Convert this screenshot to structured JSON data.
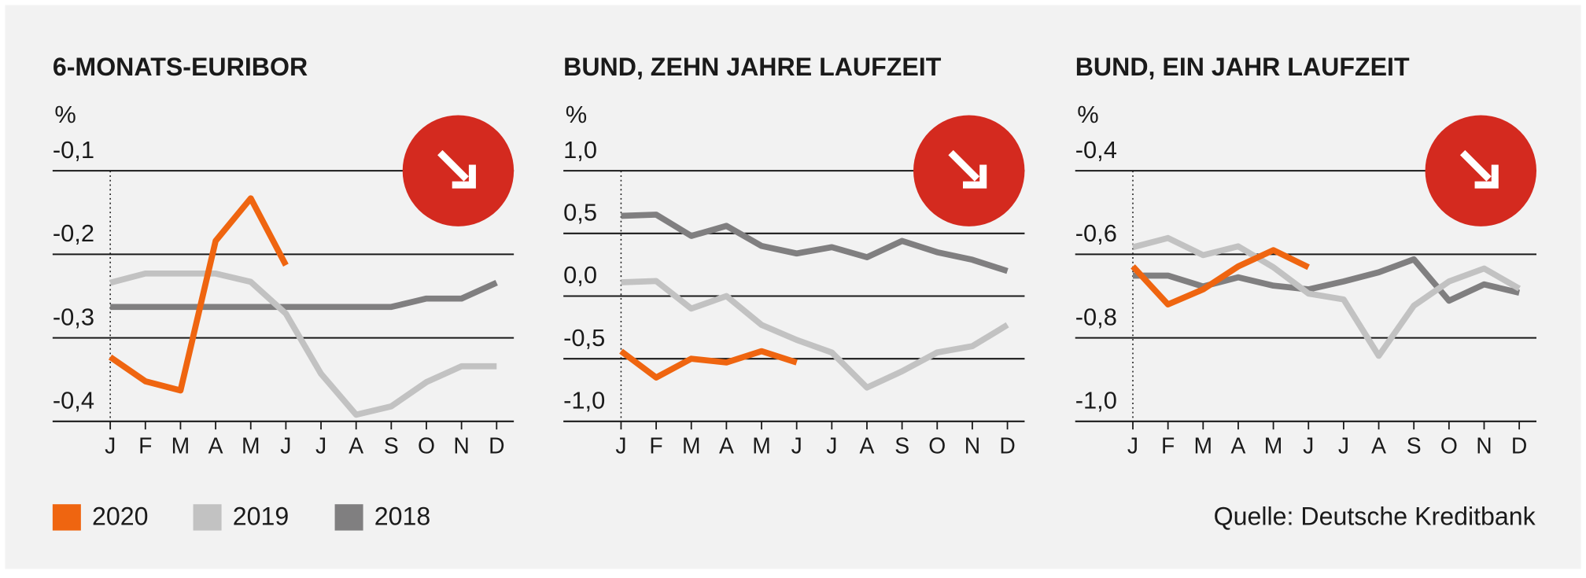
{
  "chart_data": [
    {
      "type": "line",
      "title": "6-MONATS-EURIBOR",
      "y_unit": "%",
      "categories": [
        "J",
        "F",
        "M",
        "A",
        "M",
        "J",
        "J",
        "A",
        "S",
        "O",
        "N",
        "D"
      ],
      "ylim": [
        -0.4,
        -0.1
      ],
      "yticks": [
        {
          "value": -0.4,
          "label": "-0,4"
        },
        {
          "value": -0.3,
          "label": "-0,3"
        },
        {
          "value": -0.2,
          "label": "-0,2"
        },
        {
          "value": -0.1,
          "label": "-0,1"
        }
      ],
      "grid": true,
      "series": [
        {
          "name": "2020",
          "color": "#ef6510",
          "values": [
            -0.323,
            -0.352,
            -0.363,
            -0.184,
            -0.133,
            -0.213,
            null,
            null,
            null,
            null,
            null,
            null
          ]
        },
        {
          "name": "2019",
          "color": "#c2c2c2",
          "values": [
            -0.234,
            -0.223,
            -0.223,
            -0.223,
            -0.233,
            -0.271,
            -0.343,
            -0.392,
            -0.382,
            -0.353,
            -0.334,
            -0.334
          ]
        },
        {
          "name": "2018",
          "color": "#807f80",
          "values": [
            -0.263,
            -0.263,
            -0.263,
            -0.263,
            -0.263,
            -0.263,
            -0.263,
            -0.263,
            -0.263,
            -0.253,
            -0.253,
            -0.234
          ]
        }
      ]
    },
    {
      "type": "line",
      "title": "BUND, ZEHN JAHRE LAUFZEIT",
      "y_unit": "%",
      "categories": [
        "J",
        "F",
        "M",
        "A",
        "M",
        "J",
        "J",
        "A",
        "S",
        "O",
        "N",
        "D"
      ],
      "ylim": [
        -1,
        1
      ],
      "yticks": [
        {
          "value": -1,
          "label": "-1,0"
        },
        {
          "value": -0.5,
          "label": "-0,5"
        },
        {
          "value": 0,
          "label": "0,0"
        },
        {
          "value": 0.5,
          "label": "0,5"
        },
        {
          "value": 1,
          "label": "1,0"
        }
      ],
      "grid": true,
      "series": [
        {
          "name": "2020",
          "color": "#ef6510",
          "values": [
            -0.44,
            -0.65,
            -0.5,
            -0.53,
            -0.44,
            -0.53,
            null,
            null,
            null,
            null,
            null,
            null
          ]
        },
        {
          "name": "2019",
          "color": "#c2c2c2",
          "values": [
            0.11,
            0.12,
            -0.1,
            0.0,
            -0.23,
            -0.35,
            -0.45,
            -0.73,
            -0.6,
            -0.45,
            -0.4,
            -0.23
          ]
        },
        {
          "name": "2018",
          "color": "#807f80",
          "values": [
            0.64,
            0.65,
            0.48,
            0.56,
            0.4,
            0.34,
            0.39,
            0.31,
            0.44,
            0.35,
            0.29,
            0.2
          ]
        }
      ]
    },
    {
      "type": "line",
      "title": "BUND, EIN JAHR LAUFZEIT",
      "y_unit": "%",
      "categories": [
        "J",
        "F",
        "M",
        "A",
        "M",
        "J",
        "J",
        "A",
        "S",
        "O",
        "N",
        "D"
      ],
      "ylim": [
        -1,
        -0.4
      ],
      "yticks": [
        {
          "value": -1,
          "label": "-1,0"
        },
        {
          "value": -0.8,
          "label": "-0,8"
        },
        {
          "value": -0.6,
          "label": "-0,6"
        },
        {
          "value": -0.4,
          "label": "-0,4"
        }
      ],
      "grid": true,
      "series": [
        {
          "name": "2020",
          "color": "#ef6510",
          "values": [
            -0.629,
            -0.72,
            -0.684,
            -0.629,
            -0.59,
            -0.631,
            null,
            null,
            null,
            null,
            null,
            null
          ]
        },
        {
          "name": "2019",
          "color": "#c2c2c2",
          "values": [
            -0.583,
            -0.561,
            -0.602,
            -0.581,
            -0.631,
            -0.694,
            -0.708,
            -0.843,
            -0.723,
            -0.665,
            -0.634,
            -0.682
          ]
        },
        {
          "name": "2018",
          "color": "#807f80",
          "values": [
            -0.651,
            -0.651,
            -0.677,
            -0.655,
            -0.675,
            -0.684,
            -0.665,
            -0.643,
            -0.612,
            -0.711,
            -0.672,
            -0.692
          ]
        }
      ]
    }
  ],
  "source": "Quelle: Deutsche Kreditbank"
}
